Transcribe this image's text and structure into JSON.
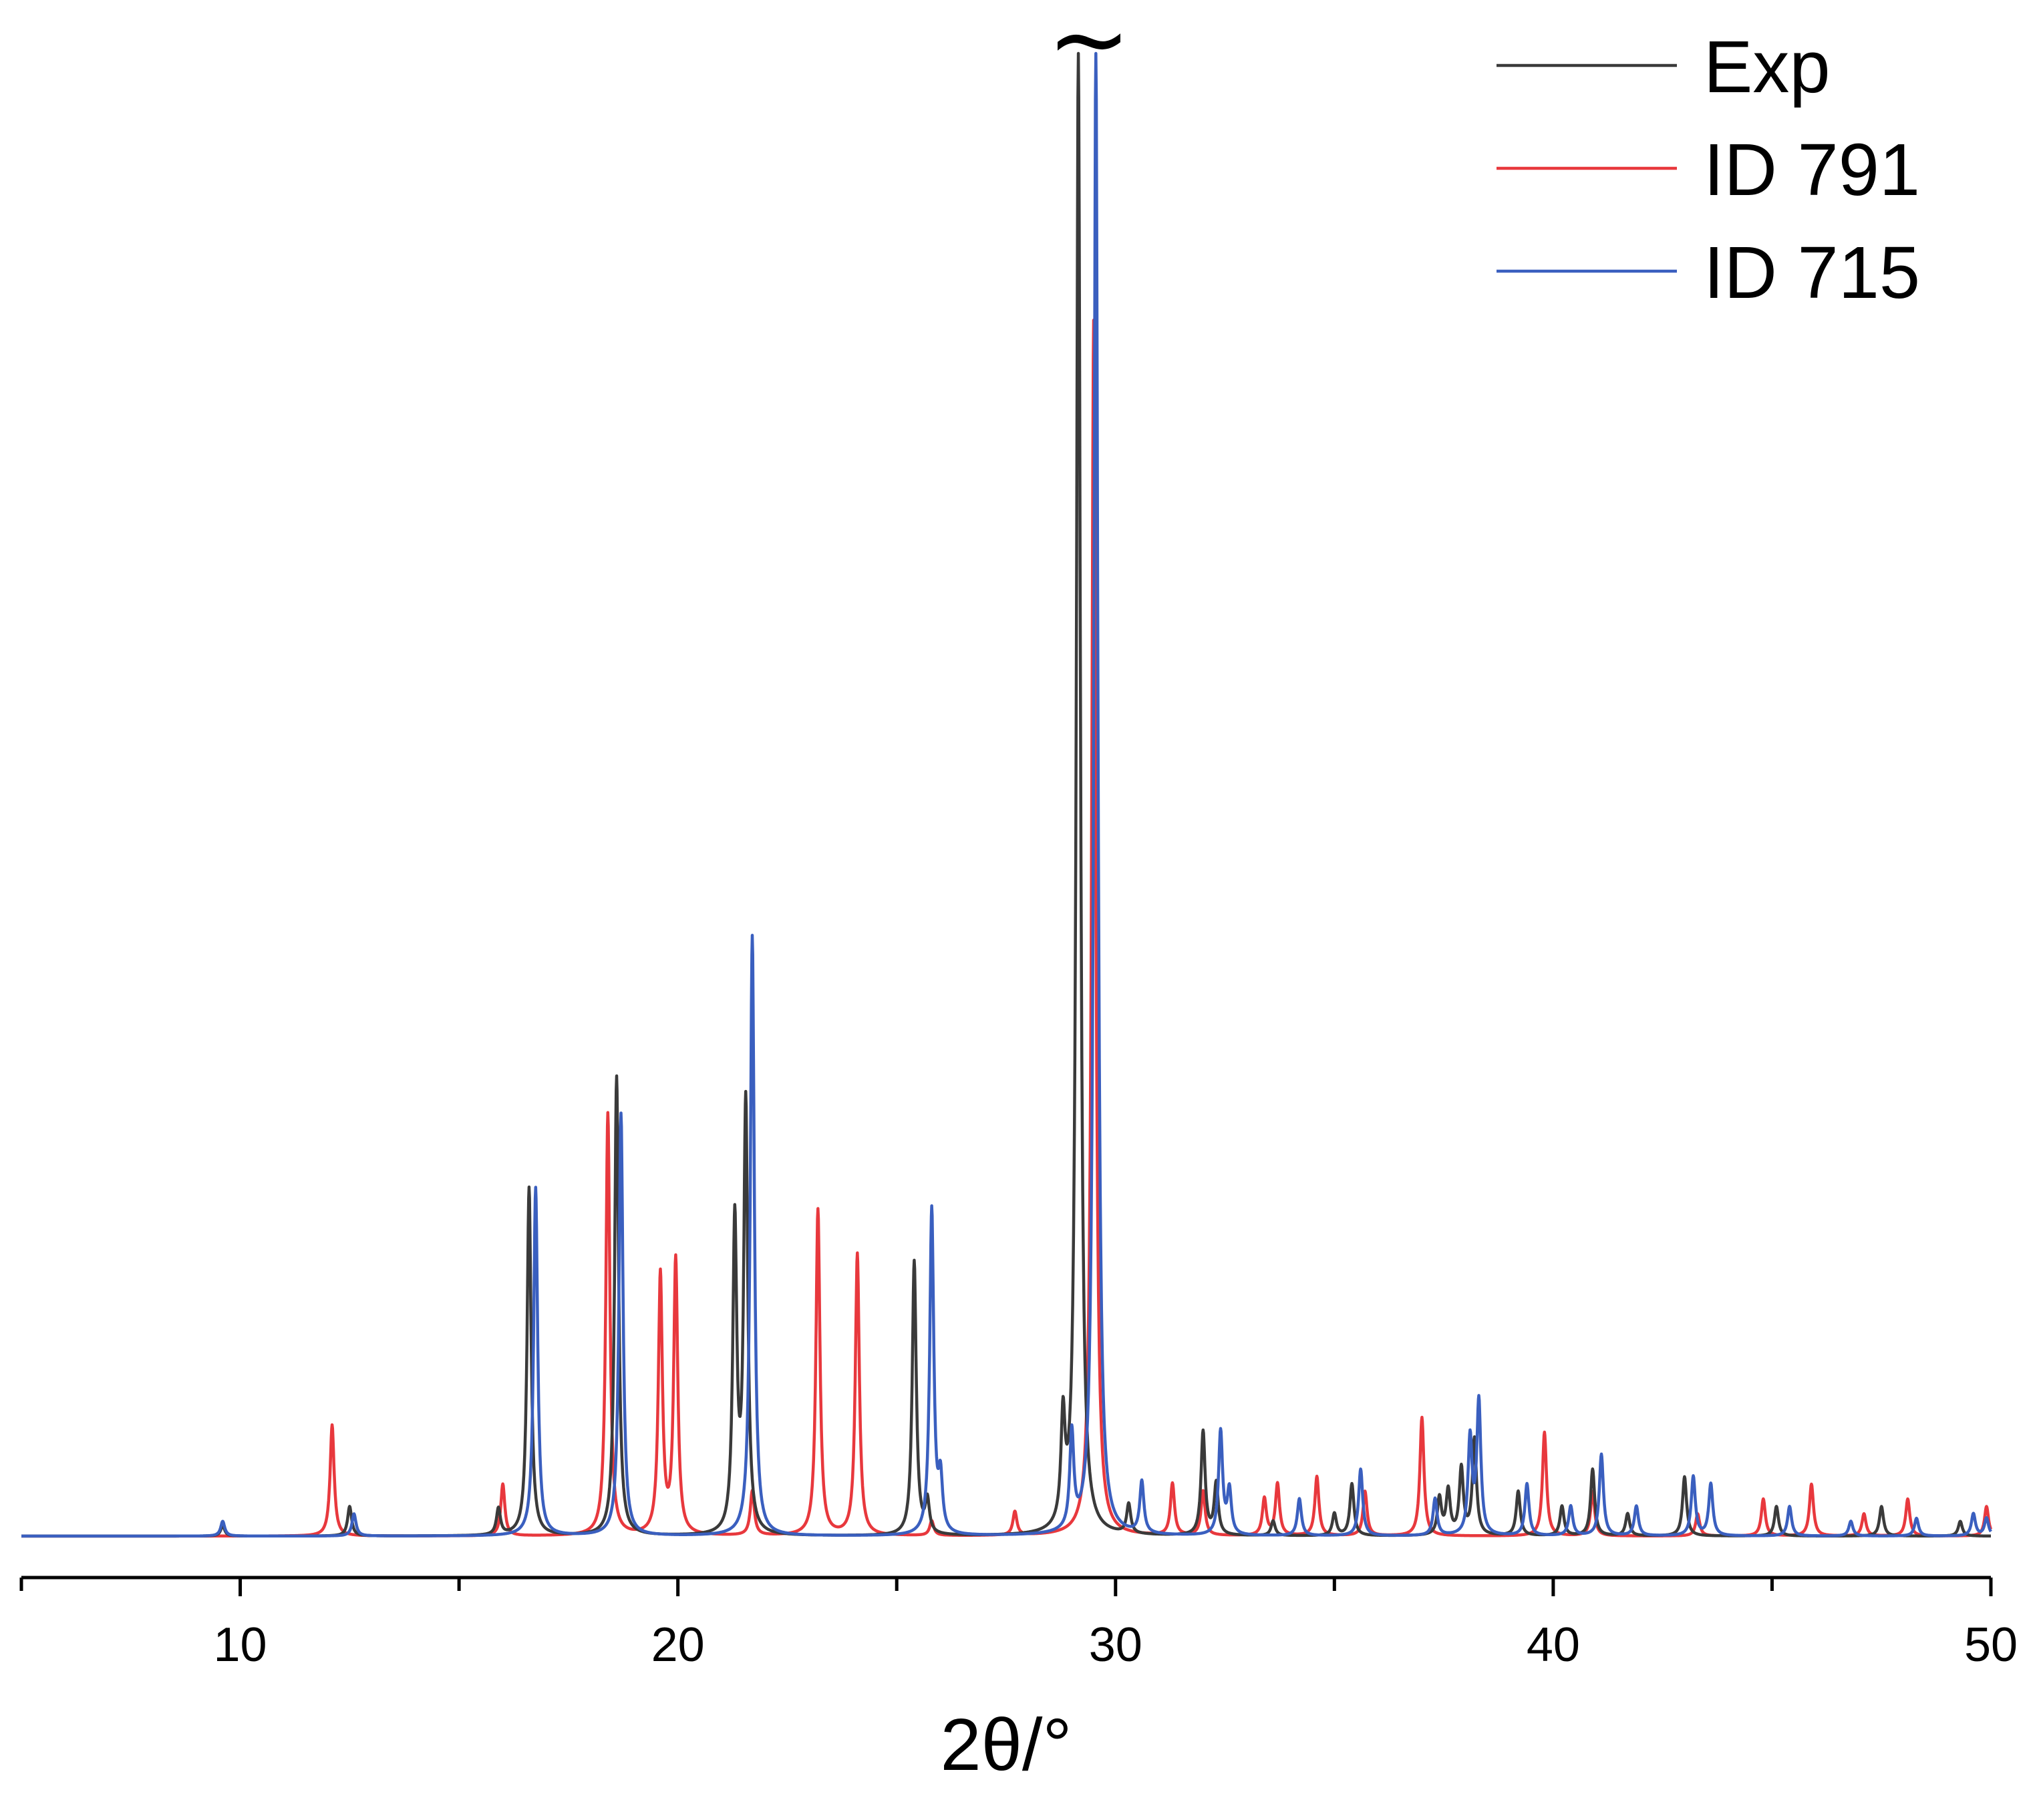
{
  "chart_data": {
    "type": "line",
    "title": "",
    "xlabel": "2θ/°",
    "ylabel": "",
    "xlim": [
      5,
      50
    ],
    "ylim": [
      0,
      100
    ],
    "x_ticks": [
      10,
      20,
      30,
      40,
      50
    ],
    "x_tick_labels": [
      "10",
      "20",
      "30",
      "40",
      "50"
    ],
    "x_minor_ticks": [
      5,
      15,
      25,
      35,
      45
    ],
    "y_axis_visible": false,
    "grid": false,
    "legend_position": "top-right",
    "annotations": [
      {
        "text": "~",
        "x": 29.3,
        "meaning": "axis break on clipped peak"
      }
    ],
    "series": [
      {
        "name": "Exp",
        "color": "#3a3a3a",
        "peaks": [
          [
            9.6,
            0.7
          ],
          [
            12.5,
            2.0
          ],
          [
            15.9,
            1.8
          ],
          [
            16.6,
            23.5
          ],
          [
            18.6,
            31.0
          ],
          [
            21.3,
            21.0
          ],
          [
            21.55,
            29.0
          ],
          [
            25.4,
            18.5
          ],
          [
            25.7,
            2.2
          ],
          [
            28.8,
            7.0
          ],
          [
            29.15,
            100
          ],
          [
            30.3,
            2.0
          ],
          [
            32.0,
            7.0
          ],
          [
            32.3,
            3.5
          ],
          [
            33.6,
            1.0
          ],
          [
            35.0,
            1.5
          ],
          [
            35.4,
            3.5
          ],
          [
            37.4,
            2.5
          ],
          [
            37.6,
            3.0
          ],
          [
            37.9,
            4.5
          ],
          [
            38.2,
            6.5
          ],
          [
            39.2,
            3.0
          ],
          [
            40.2,
            2.0
          ],
          [
            40.9,
            4.5
          ],
          [
            41.7,
            1.5
          ],
          [
            43.0,
            4.0
          ],
          [
            45.1,
            2.0
          ],
          [
            47.5,
            2.0
          ],
          [
            49.3,
            1.0
          ]
        ]
      },
      {
        "name": "ID 791",
        "color": "#e8383d",
        "peaks": [
          [
            12.1,
            7.5
          ],
          [
            16.0,
            3.5
          ],
          [
            18.4,
            28.5
          ],
          [
            19.6,
            17.5
          ],
          [
            19.95,
            18.5
          ],
          [
            21.7,
            3.0
          ],
          [
            23.2,
            22.0
          ],
          [
            24.1,
            19.0
          ],
          [
            25.8,
            1.0
          ],
          [
            27.7,
            1.6
          ],
          [
            29.5,
            82.0
          ],
          [
            31.3,
            3.5
          ],
          [
            32.0,
            3.0
          ],
          [
            33.4,
            2.5
          ],
          [
            33.7,
            3.5
          ],
          [
            34.6,
            4.0
          ],
          [
            35.7,
            3.0
          ],
          [
            37.0,
            8.0
          ],
          [
            39.8,
            7.0
          ],
          [
            40.9,
            3.0
          ],
          [
            43.3,
            1.5
          ],
          [
            44.8,
            2.5
          ],
          [
            45.9,
            3.5
          ],
          [
            47.1,
            1.5
          ],
          [
            48.1,
            2.5
          ],
          [
            49.9,
            2.0
          ]
        ]
      },
      {
        "name": "ID 715",
        "color": "#3a5fbf",
        "peaks": [
          [
            9.6,
            1.0
          ],
          [
            12.6,
            1.5
          ],
          [
            16.75,
            23.5
          ],
          [
            18.7,
            28.5
          ],
          [
            21.7,
            40.5
          ],
          [
            25.8,
            22.0
          ],
          [
            26.0,
            3.5
          ],
          [
            29.0,
            6.5
          ],
          [
            29.55,
            100
          ],
          [
            30.6,
            3.5
          ],
          [
            32.4,
            7.0
          ],
          [
            32.6,
            3.0
          ],
          [
            34.2,
            2.5
          ],
          [
            35.6,
            4.5
          ],
          [
            37.3,
            2.5
          ],
          [
            38.1,
            6.5
          ],
          [
            38.3,
            9.0
          ],
          [
            39.4,
            3.5
          ],
          [
            40.4,
            2.0
          ],
          [
            41.1,
            5.5
          ],
          [
            41.9,
            2.0
          ],
          [
            43.2,
            4.0
          ],
          [
            43.6,
            3.5
          ],
          [
            45.4,
            2.0
          ],
          [
            46.8,
            1.0
          ],
          [
            48.3,
            1.2
          ],
          [
            49.6,
            1.5
          ],
          [
            49.9,
            1.2
          ]
        ]
      }
    ]
  }
}
